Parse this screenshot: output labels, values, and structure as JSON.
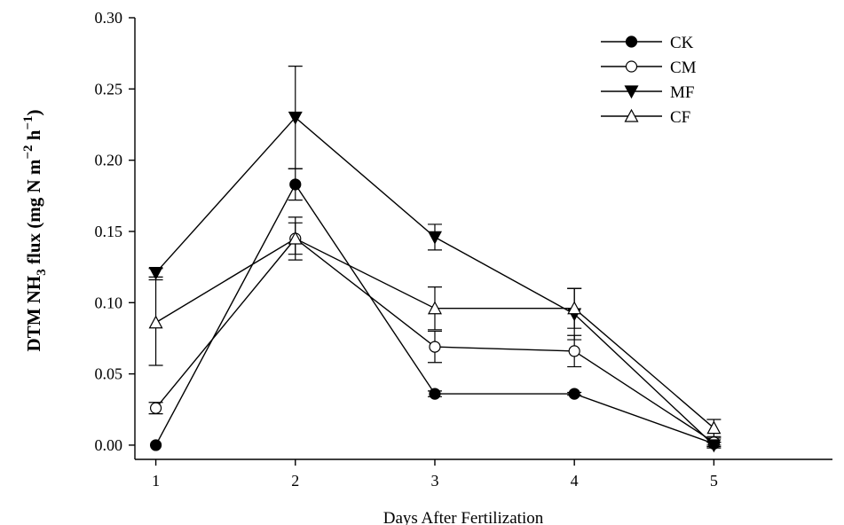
{
  "chart_data": {
    "type": "line",
    "title": "",
    "xlabel": "Days After Fertilization",
    "ylabel": {
      "prefix": "DTM  NH",
      "sub": "3",
      "mid": " flux (mg N m",
      "sup1": "−2",
      "mid2": " h",
      "sup2": "−1",
      "suffix": ")"
    },
    "x": [
      1,
      2,
      3,
      4,
      5
    ],
    "xlim": [
      0.85,
      5.85
    ],
    "ylim": [
      -0.01,
      0.3
    ],
    "xticks": [
      "1",
      "2",
      "3",
      "4",
      "5"
    ],
    "yticks": [
      "0.00",
      "0.05",
      "0.10",
      "0.15",
      "0.20",
      "0.25",
      "0.30"
    ],
    "grid": false,
    "legend_position": "top-right",
    "series": [
      {
        "name": "CK",
        "marker": "filled-circle",
        "values": [
          0.0,
          0.183,
          0.036,
          0.036,
          0.001
        ],
        "errors": [
          0.0,
          0.011,
          0.002,
          0.001,
          0.001
        ]
      },
      {
        "name": "CM",
        "marker": "open-circle",
        "values": [
          0.026,
          0.145,
          0.069,
          0.066,
          0.002
        ],
        "errors": [
          0.004,
          0.015,
          0.011,
          0.011,
          0.003
        ]
      },
      {
        "name": "MF",
        "marker": "filled-triangle-down",
        "values": [
          0.121,
          0.23,
          0.146,
          0.092,
          0.0
        ],
        "errors": [
          0.003,
          0.036,
          0.009,
          0.018,
          0.002
        ]
      },
      {
        "name": "CF",
        "marker": "open-triangle-up",
        "values": [
          0.086,
          0.145,
          0.096,
          0.096,
          0.012
        ],
        "errors": [
          0.03,
          0.011,
          0.015,
          0.014,
          0.006
        ]
      }
    ],
    "colors": {
      "line": "#000000",
      "background": "#ffffff"
    }
  }
}
